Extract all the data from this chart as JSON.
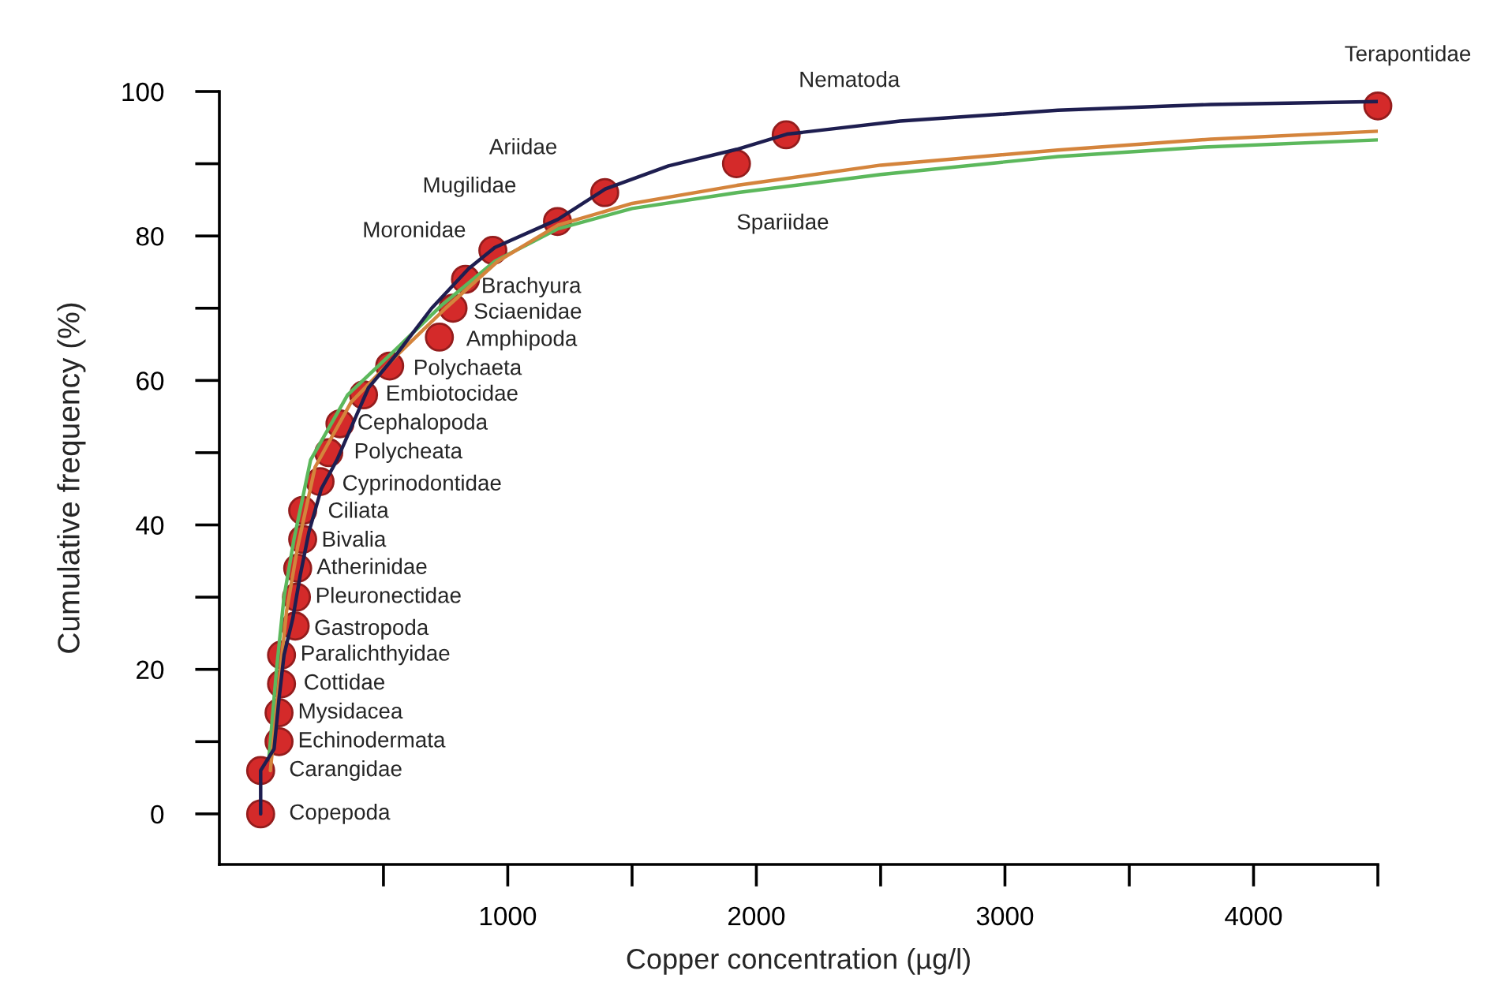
{
  "chart_data": {
    "type": "scatter",
    "xlabel": "Copper concentration (µg/l)",
    "ylabel": "Cumulative frequency (%)",
    "xlim": [
      -160,
      4500
    ],
    "ylim": [
      -7,
      100
    ],
    "xticks": [
      {
        "value": 500,
        "label": null
      },
      1000,
      {
        "value": 1500,
        "label": null
      },
      2000,
      {
        "value": 2500,
        "label": null
      },
      3000,
      {
        "value": 3500,
        "label": null
      },
      4000,
      {
        "value": 4500,
        "label": null
      }
    ],
    "yticks": [
      0,
      {
        "value": 10,
        "label": null
      },
      20,
      {
        "value": 30,
        "label": null
      },
      40,
      {
        "value": 50,
        "label": null
      },
      60,
      {
        "value": 70,
        "label": null
      },
      80,
      {
        "value": 90,
        "label": null
      },
      100
    ],
    "series": [
      {
        "type": "line",
        "color": "#5cb85c",
        "line_style": "solid",
        "x": [
          40,
          70,
          100,
          140,
          207,
          356,
          525,
          737,
          948,
          1202,
          1500,
          1922,
          2500,
          3213,
          3800,
          4500
        ],
        "values": [
          8,
          20,
          30,
          38,
          49,
          58,
          63.5,
          70.5,
          76.5,
          81,
          83.8,
          86,
          88.5,
          91,
          92.3,
          93.3
        ]
      },
      {
        "type": "line",
        "color": "#d4843c",
        "line_style": "solid",
        "x": [
          45,
          80,
          110,
          155,
          225,
          370,
          540,
          750,
          960,
          1202,
          1500,
          1922,
          2500,
          3213,
          3827,
          4500
        ],
        "values": [
          6,
          18,
          28,
          37,
          48,
          57,
          63,
          70,
          76.5,
          81.5,
          84.5,
          87,
          89.8,
          91.9,
          93.4,
          94.5
        ]
      },
      {
        "type": "line",
        "color": "#1e1e50",
        "line_style": "solid",
        "x": [
          6,
          6,
          60,
          80,
          100,
          135,
          165,
          200,
          250,
          313,
          440,
          550,
          694,
          843,
          948,
          1202,
          1392,
          1646,
          1922,
          2123,
          2578,
          3213,
          3827,
          4500
        ],
        "values": [
          0,
          6,
          9,
          16,
          22,
          27,
          33,
          39,
          45,
          49,
          59,
          63.5,
          70,
          75.5,
          78.4,
          82.3,
          86.5,
          89.7,
          92,
          94.1,
          95.9,
          97.4,
          98.2,
          98.6
        ]
      },
      {
        "color": "#d42a2a",
        "marker": "circle",
        "x": [
          6,
          6,
          80,
          80,
          90,
          90,
          145,
          150,
          155,
          175,
          175,
          245,
          280,
          325,
          420,
          525,
          725,
          780,
          830,
          940,
          1200,
          1390,
          1920,
          2120,
          4500
        ],
        "values": [
          0,
          6,
          10,
          14,
          18,
          22,
          26,
          30,
          34,
          38,
          42,
          46,
          50,
          54,
          58,
          62,
          66,
          70,
          74,
          78,
          82,
          86,
          90,
          94,
          98
        ]
      }
    ],
    "annotations": [
      {
        "text": "Copepoda",
        "x": 6,
        "y": 0
      },
      {
        "text": "Carangidae",
        "x": 6,
        "y": 6
      },
      {
        "text": "Echinodermata",
        "x": 80,
        "y": 10
      },
      {
        "text": "Mysidacea",
        "x": 80,
        "y": 14
      },
      {
        "text": "Cottidae",
        "x": 90,
        "y": 18
      },
      {
        "text": "Paralichthyidae",
        "x": 90,
        "y": 22
      },
      {
        "text": "Gastropoda",
        "x": 145,
        "y": 26
      },
      {
        "text": "Pleuronectidae",
        "x": 150,
        "y": 30
      },
      {
        "text": "Atherinidae",
        "x": 155,
        "y": 34
      },
      {
        "text": "Bivalia",
        "x": 175,
        "y": 38
      },
      {
        "text": "Ciliata",
        "x": 175,
        "y": 42
      },
      {
        "text": "Cyprinodontidae",
        "x": 245,
        "y": 46
      },
      {
        "text": "Polycheata",
        "x": 280,
        "y": 50
      },
      {
        "text": "Cephalopoda",
        "x": 325,
        "y": 54
      },
      {
        "text": "Embiotocidae",
        "x": 420,
        "y": 58
      },
      {
        "text": "Polychaeta",
        "x": 525,
        "y": 62
      },
      {
        "text": "Amphipoda",
        "x": 725,
        "y": 66
      },
      {
        "text": "Sciaenidae",
        "x": 780,
        "y": 70
      },
      {
        "text": "Brachyura",
        "x": 830,
        "y": 74
      },
      {
        "text": "Moronidae",
        "x": 940,
        "y": 78
      },
      {
        "text": "Mugilidae",
        "x": 1200,
        "y": 82
      },
      {
        "text": "Ariidae",
        "x": 1390,
        "y": 86
      },
      {
        "text": "Spariidae",
        "x": 1920,
        "y": 90
      },
      {
        "text": "Nematoda",
        "x": 2120,
        "y": 94
      },
      {
        "text": "Terapontidae",
        "x": 4500,
        "y": 98
      }
    ]
  }
}
